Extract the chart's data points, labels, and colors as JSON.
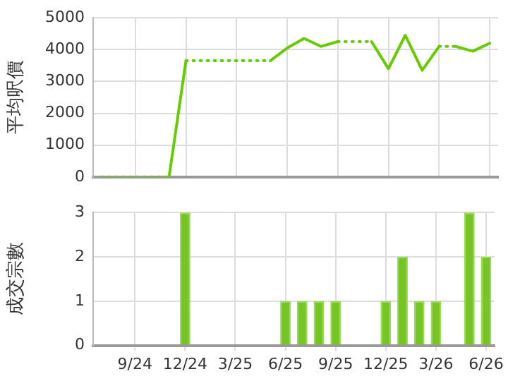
{
  "chart_data": [
    {
      "type": "line",
      "ylabel": "平均呎價",
      "categories": [
        null,
        null,
        null,
        null,
        null,
        null,
        null,
        null,
        null,
        null,
        null,
        null,
        null,
        null,
        null,
        null,
        null,
        null,
        null,
        null,
        null,
        null,
        null,
        null
      ],
      "tick_labels": "y",
      "ylim": [
        0,
        5000
      ],
      "yticks": [
        0,
        1000,
        2000,
        3000,
        4000,
        5000
      ],
      "grid": true,
      "marker": "none",
      "series": [
        {
          "color": "#66cc00",
          "line_style": "solid",
          "values": [
            0,
            0,
            0,
            0,
            0,
            3650,
            3650,
            3650,
            3650,
            3650,
            3650,
            4050,
            4350,
            4100,
            4250,
            4250,
            4250,
            3400,
            4450,
            3350,
            4100,
            4100,
            3950,
            4200
          ]
        }
      ]
    },
    {
      "type": "bar",
      "ylabel": "成交宗數",
      "categories": [
        null,
        null,
        "9/24",
        null,
        null,
        "12/24",
        null,
        null,
        "3/25",
        null,
        null,
        "6/25",
        null,
        null,
        "9/25",
        null,
        null,
        "12/25",
        null,
        null,
        "3/26",
        null,
        null,
        "6/26"
      ],
      "ylim": [
        0,
        3
      ],
      "yticks": [
        0,
        1,
        2,
        3
      ],
      "grid": true,
      "color": "#77c425",
      "values": [
        0,
        0,
        0,
        0,
        0,
        3,
        0,
        0,
        0,
        0,
        0,
        1,
        1,
        1,
        1,
        0,
        0,
        1,
        2,
        1,
        1,
        0,
        3,
        2
      ]
    }
  ]
}
